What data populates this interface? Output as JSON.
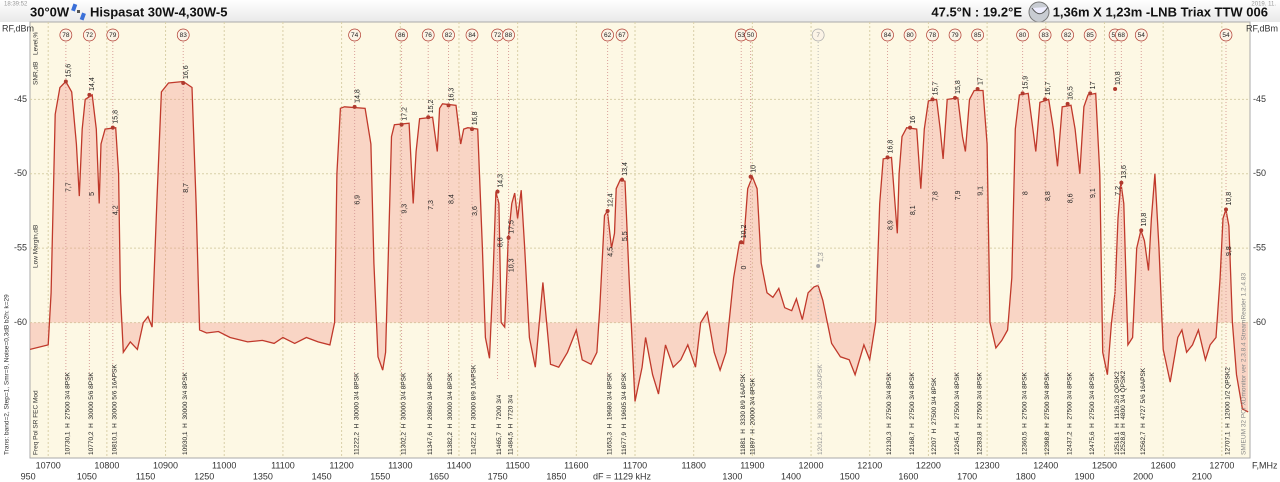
{
  "header": {
    "time": "18:39:52",
    "date": "2019. 11.",
    "position": "30°0W",
    "satellite": "Hispasat 30W-4,30W-5",
    "location": "47.5°N : 19.2°E",
    "dish": "1,36m X 1,23m -LNB Triax TTW 006"
  },
  "side_texts": {
    "level": "Level,%",
    "snr": "SNR,dB",
    "margin": "Low Margin,dB",
    "columns": "Freq  Pol  SR  FEC  Mod",
    "settings": "Trans:  band=2, Step=1, Smr=9, Noise=0,3dB   b2h:  k=29",
    "software": "SMIEUM 32 PCI   XDmonitor  ver 2.3.8.4  StreamReader 1.2.4.83"
  },
  "chart_data": {
    "type": "line",
    "y_label": "RF,dBm",
    "x_label": "F,MHz",
    "note": "dF = 1129 kHz",
    "color": "#c0392b",
    "grid": true,
    "xlim": [
      10669,
      12748
    ],
    "ylim": [
      -39.8,
      -69.1
    ],
    "xticks": [
      10700,
      10800,
      10900,
      11000,
      11100,
      11200,
      11300,
      11400,
      11500,
      11600,
      11700,
      11800,
      11900,
      12000,
      12100,
      12200,
      12300,
      12400,
      12500,
      12600,
      12700
    ],
    "if_labels": [
      "950",
      "1050",
      "1150",
      "1250",
      "1350",
      "1450",
      "1550",
      "1650",
      "1750",
      "1850",
      null,
      null,
      "1300",
      "1400",
      "1500",
      "1600",
      "1700",
      "1800",
      "1900",
      "2000",
      "2100"
    ],
    "yticks": [
      -45,
      -50,
      -55,
      -60
    ],
    "x": [
      10669,
      10700,
      10705,
      10712,
      10720,
      10730,
      10740,
      10748,
      10753,
      10758,
      10763,
      10775,
      10782,
      10787,
      10790,
      10797,
      10815,
      10820,
      10823,
      10828,
      10840,
      10852,
      10862,
      10870,
      10877,
      10885,
      10893,
      10905,
      10930,
      10945,
      10952,
      10958,
      10970,
      10990,
      11010,
      11040,
      11065,
      11085,
      11100,
      11120,
      11140,
      11160,
      11180,
      11188,
      11192,
      11198,
      11205,
      11240,
      11250,
      11255,
      11262,
      11270,
      11275,
      11280,
      11285,
      11290,
      11315,
      11322,
      11327,
      11333,
      11355,
      11363,
      11367,
      11372,
      11395,
      11403,
      11408,
      11415,
      11432,
      11440,
      11445,
      11452,
      11458,
      11463,
      11468,
      11472,
      11478,
      11484,
      11490,
      11495,
      11500,
      11506,
      11512,
      11520,
      11530,
      11543,
      11556,
      11570,
      11585,
      11600,
      11610,
      11625,
      11635,
      11640,
      11648,
      11653,
      11660,
      11665,
      11668,
      11675,
      11683,
      11690,
      11700,
      11712,
      11718,
      11730,
      11740,
      11752,
      11765,
      11778,
      11790,
      11803,
      11812,
      11823,
      11835,
      11845,
      11855,
      11868,
      11878,
      11885,
      11892,
      11900,
      11908,
      11915,
      11925,
      11935,
      11945,
      11955,
      11967,
      11975,
      11985,
      11995,
      12005,
      12012,
      12020,
      12035,
      12050,
      12065,
      12075,
      12090,
      12100,
      12110,
      12117,
      12123,
      12137,
      12143,
      12147,
      12150,
      12155,
      12163,
      12180,
      12187,
      12193,
      12200,
      12214,
      12220,
      12225,
      12232,
      12250,
      12258,
      12263,
      12270,
      12278,
      12293,
      12300,
      12305,
      12315,
      12325,
      12335,
      12342,
      12348,
      12355,
      12370,
      12378,
      12383,
      12390,
      12405,
      12413,
      12420,
      12428,
      12443,
      12450,
      12458,
      12465,
      12472,
      12485,
      12492,
      12497,
      12505,
      12512,
      12518,
      12523,
      12528,
      12533,
      12540,
      12548,
      12555,
      12562,
      12568,
      12575,
      12580,
      12586,
      12593,
      12600,
      12612,
      12625,
      12632,
      12640,
      12650,
      12660,
      12672,
      12680,
      12690,
      12697,
      12702,
      12707,
      12712,
      12718,
      12725,
      12735,
      12745
    ],
    "values": [
      -61.8,
      -61.5,
      -58,
      -46,
      -44.2,
      -43.8,
      -44.5,
      -48,
      -51.5,
      -47,
      -45,
      -44.7,
      -47,
      -52,
      -48,
      -47,
      -46.9,
      -50,
      -58,
      -62,
      -61.3,
      -61.8,
      -60,
      -59.6,
      -60.3,
      -52,
      -44.5,
      -43.9,
      -43.8,
      -44.2,
      -52,
      -60.5,
      -60.7,
      -60.6,
      -61,
      -61.3,
      -61.2,
      -61.4,
      -61,
      -61.4,
      -61,
      -61.3,
      -61.5,
      -60,
      -50,
      -45.6,
      -45.5,
      -45.6,
      -48,
      -56,
      -62.3,
      -63.2,
      -62,
      -55,
      -47.5,
      -46.7,
      -46.6,
      -52,
      -48.5,
      -46.3,
      -46.2,
      -48.5,
      -45.6,
      -45.3,
      -45.4,
      -48,
      -47,
      -46.9,
      -47,
      -55,
      -61,
      -62.4,
      -57,
      -51.2,
      -52,
      -60,
      -60.3,
      -54.3,
      -52,
      -51.3,
      -53,
      -51.1,
      -55,
      -61,
      -63,
      -57.3,
      -62.8,
      -63,
      -62,
      -60.5,
      -62.5,
      -62.8,
      -62,
      -59,
      -52.8,
      -52.5,
      -55,
      -54,
      -51,
      -50.4,
      -50.5,
      -57,
      -65.3,
      -63,
      -61,
      -63.5,
      -64.8,
      -61.5,
      -63,
      -62.5,
      -61.5,
      -63,
      -60,
      -59.3,
      -62,
      -63.2,
      -62,
      -57,
      -54.6,
      -54.7,
      -51,
      -50.2,
      -51,
      -56,
      -58,
      -58.3,
      -57.7,
      -59,
      -59.2,
      -58.4,
      -59.8,
      -58,
      -57.6,
      -57.5,
      -58.5,
      -61.4,
      -62.3,
      -62.5,
      -63.5,
      -61.5,
      -62.5,
      -60,
      -52,
      -49,
      -48.9,
      -52,
      -54,
      -50,
      -47.5,
      -46.9,
      -47,
      -51,
      -47,
      -45.1,
      -45,
      -47,
      -49,
      -45,
      -44.9,
      -47.5,
      -48.5,
      -45,
      -44.4,
      -44.4,
      -48,
      -60,
      -61.7,
      -61.2,
      -60.5,
      -57,
      -47,
      -44.7,
      -44.6,
      -47,
      -48.5,
      -45.2,
      -45,
      -47,
      -49.5,
      -45.5,
      -45.4,
      -47,
      -50,
      -45.5,
      -44.7,
      -44.6,
      -50,
      -62,
      -63.5,
      -60,
      -58,
      -53,
      -50.6,
      -52,
      -61.5,
      -61,
      -55,
      -53.8,
      -54.5,
      -56.5,
      -53,
      -50,
      -55,
      -61.8,
      -64,
      -61,
      -60.5,
      -62,
      -61.5,
      -60.5,
      -62.5,
      -61.5,
      -61,
      -57,
      -53,
      -52.4,
      -53.5,
      -60,
      -63.5,
      -65.8,
      -66
    ],
    "transponders": [
      {
        "freq": 10730.1,
        "level_dbm": -43.8,
        "mer": 78,
        "level": "15,6",
        "cn": "7,7",
        "label": "10730,1  H  27500 3/4 8PSK"
      },
      {
        "freq": 10770.2,
        "level_dbm": -44.7,
        "mer": 72,
        "level": "14,4",
        "cn": "5",
        "label": "10770,2  H  30000 5/6 8PSK"
      },
      {
        "freq": 10810.1,
        "level_dbm": -46.9,
        "mer": 79,
        "level": "15,8",
        "cn": "4,2",
        "label": "10810,1  H  30000 5/6 16APSK"
      },
      {
        "freq": 10930.1,
        "level_dbm": -43.9,
        "mer": 83,
        "level": "16,6",
        "cn": "8,7",
        "label": "10930,1  H  30000 3/4 8PSK"
      },
      {
        "freq": 11222.2,
        "level_dbm": -45.5,
        "mer": 74,
        "level": "14,8",
        "cn": "6,9",
        "label": "11222,2  H  30000 3/4 8PSK"
      },
      {
        "freq": 11302.2,
        "level_dbm": -46.7,
        "mer": 86,
        "level": "17,2",
        "cn": "9,3",
        "label": "11302,2  H  30000 3/4 8PSK"
      },
      {
        "freq": 11347.6,
        "level_dbm": -46.2,
        "mer": 76,
        "level": "15,2",
        "cn": "7,3",
        "label": "11347,6  H  20860 3/4 8PSK"
      },
      {
        "freq": 11382.2,
        "level_dbm": -45.4,
        "mer": 82,
        "level": "16,3",
        "cn": "8,4",
        "label": "11382,2  H  30000 3/4 8PSK"
      },
      {
        "freq": 11422.2,
        "level_dbm": -47.0,
        "mer": 84,
        "level": "16,8",
        "cn": "3,6",
        "label": "11422,2  H  30000 8/9 16APSK"
      },
      {
        "freq": 11465.7,
        "level_dbm": -51.2,
        "mer": 72,
        "level": "14,3",
        "cn": "8,8",
        "label": "11465,7  H  7200 3/4"
      },
      {
        "freq": 11484.5,
        "level_dbm": -54.3,
        "mer": 88,
        "level": "17,5",
        "cn": "10,3",
        "label": "11484,5  H  7720 3/4"
      },
      {
        "freq": 11653.3,
        "level_dbm": -52.5,
        "mer": 62,
        "level": "12,4",
        "cn": "4,5",
        "label": "11653,3  H  19680 3/4 8PSK"
      },
      {
        "freq": 11677.9,
        "level_dbm": -50.4,
        "mer": 67,
        "level": "13,4",
        "cn": "5,5",
        "label": "11677,9  H  19605 3/4 8PSK"
      },
      {
        "freq": 11881,
        "level_dbm": -54.6,
        "mer": 53,
        "level": "10,2",
        "cn": "0",
        "label": "11881  H  3330 8/9 16APSK"
      },
      {
        "freq": 11897,
        "level_dbm": -50.2,
        "mer": 50,
        "level": "10",
        "cn": null,
        "label": "11897  H  20000 3/4 8PSK"
      },
      {
        "freq": 12012.1,
        "level_dbm": -56.2,
        "mer": 7,
        "level": "1,3",
        "cn": null,
        "label": "12012,1  H  30000 3/4 32APSK",
        "dim": true
      },
      {
        "freq": 12130.3,
        "level_dbm": -48.9,
        "mer": 84,
        "level": "16,8",
        "cn": "8,9",
        "label": "12130,3  H  27500 3/4 8PSK"
      },
      {
        "freq": 12168.7,
        "level_dbm": -46.9,
        "mer": 80,
        "level": "16",
        "cn": "8,1",
        "label": "12168,7  H  27500 3/4 8PSK"
      },
      {
        "freq": 12207,
        "level_dbm": -45.0,
        "mer": 78,
        "level": "15,7",
        "cn": "7,8",
        "label": "12207  H  27500 3/4 8PSK"
      },
      {
        "freq": 12245.4,
        "level_dbm": -44.9,
        "mer": 79,
        "level": "15,8",
        "cn": "7,9",
        "label": "12245,4  H  27500 3/4 8PSK"
      },
      {
        "freq": 12283.8,
        "level_dbm": -44.3,
        "mer": 85,
        "level": "17",
        "cn": "9,1",
        "label": "12283,8  H  27500 3/4 8PSK"
      },
      {
        "freq": 12360.5,
        "level_dbm": -44.6,
        "mer": 80,
        "level": "15,9",
        "cn": "8",
        "label": "12360,5  H  27500 3/4 8PSK"
      },
      {
        "freq": 12398.8,
        "level_dbm": -45.0,
        "mer": 83,
        "level": "16,7",
        "cn": "8,8",
        "label": "12398,8  H  27500 3/4 8PSK"
      },
      {
        "freq": 12437.2,
        "level_dbm": -45.3,
        "mer": 82,
        "level": "16,5",
        "cn": "8,6",
        "label": "12437,2  H  27500 3/4 8PSK"
      },
      {
        "freq": 12475.6,
        "level_dbm": -44.6,
        "mer": 85,
        "level": "17",
        "cn": "9,1",
        "label": "12475,6  H  27500 3/4 8PSK"
      },
      {
        "freq": 12518.1,
        "level_dbm": -44.3,
        "mer": 54,
        "level": "10,8",
        "cn": "7,2",
        "label": "12518,1  H  1126,2/3 QPSK2"
      },
      {
        "freq": 12528.8,
        "level_dbm": -50.6,
        "mer": 68,
        "level": "13,6",
        "cn": null,
        "label": "12528,8  H  4800 3/4 QPSK2"
      },
      {
        "freq": 12562.7,
        "level_dbm": -53.8,
        "mer": 54,
        "level": "10,8",
        "cn": null,
        "label": "12562,7  H  4727 5/6 16APSK"
      },
      {
        "freq": 12707.1,
        "level_dbm": -52.4,
        "mer": 54,
        "level": "10,8",
        "cn": "9,8",
        "label": "12707,1  H  12000 1/2 QPSK2"
      }
    ]
  }
}
